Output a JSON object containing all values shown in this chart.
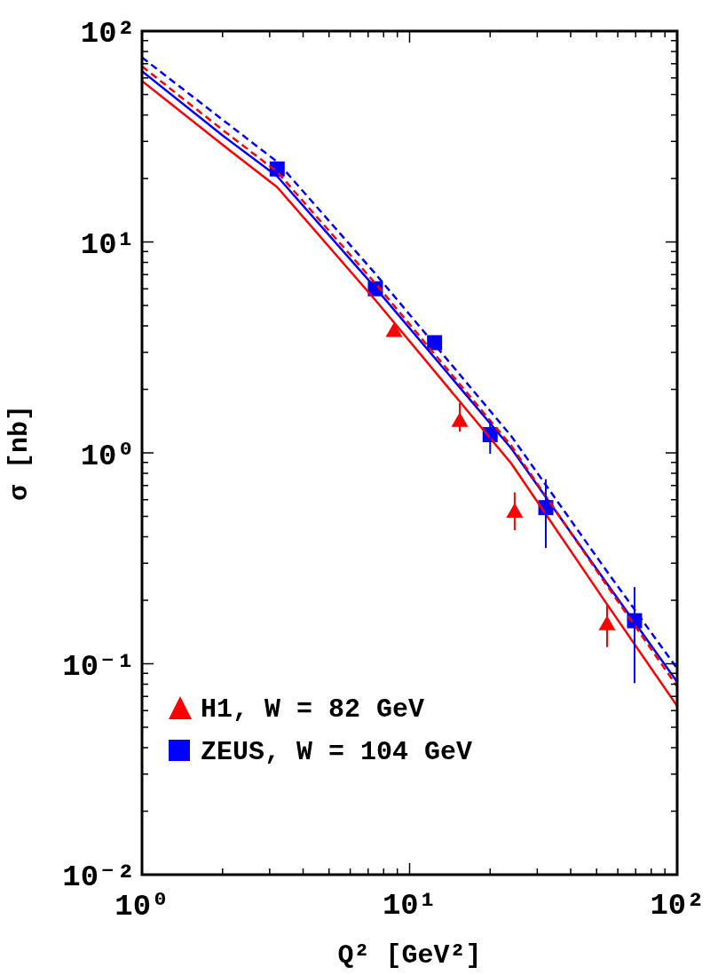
{
  "chart_data": {
    "type": "scatter",
    "xlabel": "Q² [GeV²]",
    "ylabel": "σ [nb]",
    "log": "xy",
    "legend": "bottom left",
    "grid": false,
    "xlim": [
      1,
      100
    ],
    "ylim": [
      0.01,
      100
    ],
    "xticks": [
      {
        "value": 1,
        "label": "10⁰"
      },
      {
        "value": 2,
        "label": null
      },
      {
        "value": 3,
        "label": null
      },
      {
        "value": 4,
        "label": null
      },
      {
        "value": 5,
        "label": null
      },
      {
        "value": 6,
        "label": null
      },
      {
        "value": 7,
        "label": null
      },
      {
        "value": 8,
        "label": null
      },
      {
        "value": 9,
        "label": null
      },
      {
        "value": 10,
        "label": "10¹"
      },
      {
        "value": 20,
        "label": null
      },
      {
        "value": 30,
        "label": null
      },
      {
        "value": 40,
        "label": null
      },
      {
        "value": 50,
        "label": null
      },
      {
        "value": 60,
        "label": null
      },
      {
        "value": 70,
        "label": null
      },
      {
        "value": 80,
        "label": null
      },
      {
        "value": 90,
        "label": null
      },
      {
        "value": 100,
        "label": "10²"
      }
    ],
    "yticks": [
      {
        "value": 0.01,
        "label": "10⁻²"
      },
      {
        "value": 0.02,
        "label": null
      },
      {
        "value": 0.03,
        "label": null
      },
      {
        "value": 0.04,
        "label": null
      },
      {
        "value": 0.05,
        "label": null
      },
      {
        "value": 0.06,
        "label": null
      },
      {
        "value": 0.07,
        "label": null
      },
      {
        "value": 0.08,
        "label": null
      },
      {
        "value": 0.09,
        "label": null
      },
      {
        "value": 0.1,
        "label": "10⁻¹"
      },
      {
        "value": 0.2,
        "label": null
      },
      {
        "value": 0.3,
        "label": null
      },
      {
        "value": 0.4,
        "label": null
      },
      {
        "value": 0.5,
        "label": null
      },
      {
        "value": 0.6,
        "label": null
      },
      {
        "value": 0.7,
        "label": null
      },
      {
        "value": 0.8,
        "label": null
      },
      {
        "value": 0.9,
        "label": null
      },
      {
        "value": 1,
        "label": "10⁰"
      },
      {
        "value": 2,
        "label": null
      },
      {
        "value": 3,
        "label": null
      },
      {
        "value": 4,
        "label": null
      },
      {
        "value": 5,
        "label": null
      },
      {
        "value": 6,
        "label": null
      },
      {
        "value": 7,
        "label": null
      },
      {
        "value": 8,
        "label": null
      },
      {
        "value": 9,
        "label": null
      },
      {
        "value": 10,
        "label": "10¹"
      },
      {
        "value": 20,
        "label": null
      },
      {
        "value": 30,
        "label": null
      },
      {
        "value": 40,
        "label": null
      },
      {
        "value": 50,
        "label": null
      },
      {
        "value": 60,
        "label": null
      },
      {
        "value": 70,
        "label": null
      },
      {
        "value": 80,
        "label": null
      },
      {
        "value": 90,
        "label": null
      },
      {
        "value": 100,
        "label": "10²"
      }
    ],
    "series": [
      {
        "type": "line",
        "color": "#ff0000",
        "line_style": "solid",
        "marker": "none",
        "x": [
          1,
          2,
          3.2,
          7.5,
          24,
          54,
          100
        ],
        "values": [
          58,
          28.9,
          18.2,
          5.25,
          0.89,
          0.196,
          0.063
        ]
      },
      {
        "type": "line",
        "color": "#ff0000",
        "line_style": "dashed",
        "marker": "none",
        "x": [
          1,
          2,
          3.2,
          7.5,
          24,
          54,
          100
        ],
        "values": [
          68,
          34,
          21.5,
          6.3,
          1.08,
          0.24,
          0.078
        ]
      },
      {
        "type": "line",
        "color": "#0000ff",
        "line_style": "solid",
        "marker": "none",
        "x": [
          1,
          2,
          3.2,
          7.5,
          24,
          54,
          100
        ],
        "values": [
          64.5,
          32,
          20.5,
          6.0,
          1.05,
          0.245,
          0.082
        ]
      },
      {
        "type": "line",
        "color": "#0000ff",
        "line_style": "dashed",
        "marker": "none",
        "x": [
          1,
          2,
          3.2,
          7.5,
          24,
          54,
          100
        ],
        "values": [
          75,
          38,
          24,
          7.0,
          1.2,
          0.28,
          0.095
        ]
      },
      {
        "name": "H1, W = 82 GeV",
        "color": "#ff0000",
        "marker": "triangle",
        "x": [
          8.75,
          15.4,
          24.7,
          54.7
        ],
        "values": [
          3.74,
          1.4,
          0.52,
          0.152
        ],
        "errors": [
          null,
          [
            1.26,
            1.72
          ],
          [
            0.43,
            0.65
          ],
          [
            0.12,
            0.19
          ]
        ]
      },
      {
        "name": "ZEUS, W = 104 GeV",
        "color": "#0000ff",
        "marker": "square",
        "x": [
          3.2,
          7.45,
          12.4,
          20,
          32.3,
          69.3
        ],
        "values": [
          22.2,
          6.0,
          3.33,
          1.22,
          0.55,
          0.16
        ],
        "errors": [
          null,
          null,
          null,
          [
            0.99,
            1.42
          ],
          [
            0.354,
            0.75
          ],
          [
            0.081,
            0.231
          ]
        ]
      }
    ]
  }
}
